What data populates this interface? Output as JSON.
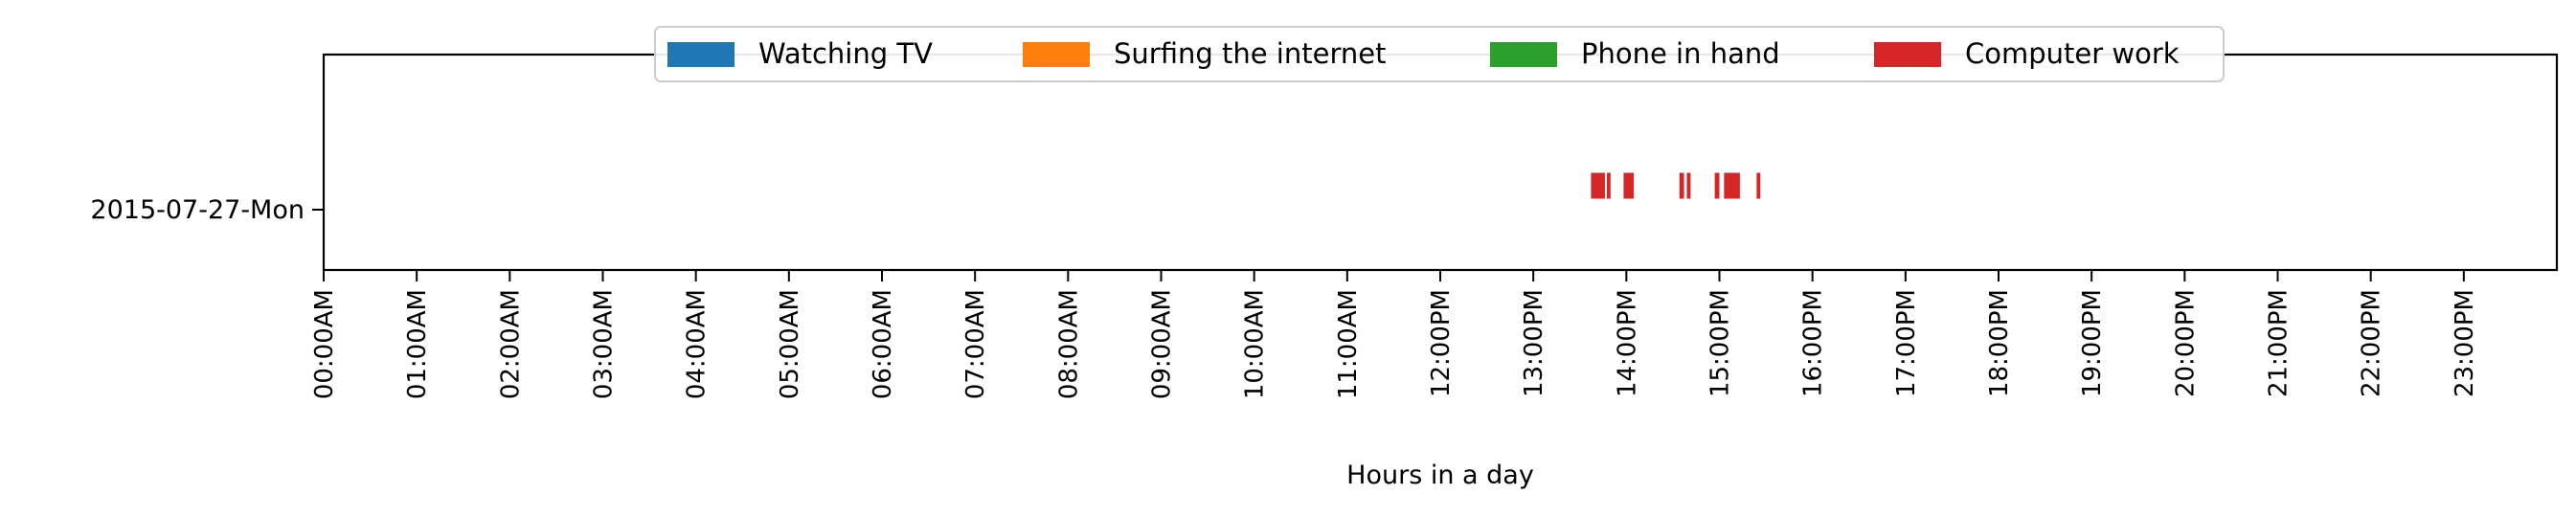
{
  "chart_data": {
    "type": "timeline",
    "xlabel": "Hours in a day",
    "ylabel": "",
    "xlim": [
      0,
      24
    ],
    "x_ticks": [
      "00:00AM",
      "01:00AM",
      "02:00AM",
      "03:00AM",
      "04:00AM",
      "05:00AM",
      "06:00AM",
      "07:00AM",
      "08:00AM",
      "09:00AM",
      "10:00AM",
      "11:00AM",
      "12:00PM",
      "13:00PM",
      "14:00PM",
      "15:00PM",
      "16:00PM",
      "17:00PM",
      "18:00PM",
      "19:00PM",
      "20:00PM",
      "21:00PM",
      "22:00PM",
      "23:00PM"
    ],
    "categories": [
      "2015-07-27-Mon"
    ],
    "grid": false,
    "legend_position": "top-center",
    "series": [
      {
        "name": "Watching TV",
        "color": "#1f77b4",
        "intervals": []
      },
      {
        "name": "Surfing the internet",
        "color": "#ff7f0e",
        "intervals": []
      },
      {
        "name": "Phone in hand",
        "color": "#2ca02c",
        "intervals": []
      },
      {
        "name": "Computer work",
        "color": "#d62728",
        "intervals": [
          {
            "day": "2015-07-27-Mon",
            "start": 13.62,
            "end": 13.77
          },
          {
            "day": "2015-07-27-Mon",
            "start": 13.79,
            "end": 13.83
          },
          {
            "day": "2015-07-27-Mon",
            "start": 13.97,
            "end": 14.08
          },
          {
            "day": "2015-07-27-Mon",
            "start": 14.57,
            "end": 14.62
          },
          {
            "day": "2015-07-27-Mon",
            "start": 14.65,
            "end": 14.69
          },
          {
            "day": "2015-07-27-Mon",
            "start": 14.95,
            "end": 15.0
          },
          {
            "day": "2015-07-27-Mon",
            "start": 15.05,
            "end": 15.22
          },
          {
            "day": "2015-07-27-Mon",
            "start": 15.4,
            "end": 15.44
          }
        ]
      }
    ]
  }
}
